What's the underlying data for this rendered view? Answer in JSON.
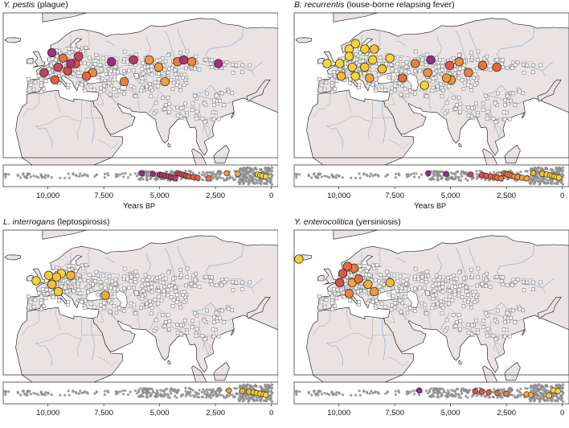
{
  "xaxis": {
    "ticks": [
      "10,000",
      "7,500",
      "5,000",
      "2,500",
      "0"
    ],
    "label": "Years",
    "unit": "BP",
    "range_bp": [
      12000,
      -300
    ]
  },
  "colors": {
    "land": "#e9e3e4",
    "sea": "#ffffff",
    "river": "#9fb6cf",
    "border": "#a8a2a3",
    "sample_square": "#8c8c8c",
    "bg_dot": "#8d8d8d",
    "old": "#9c2a86",
    "mid": "#e8553f",
    "young": "#f7d633"
  },
  "panels": [
    {
      "species": "Y. pestis",
      "disease": "(plague)",
      "show_xlabel": true,
      "map_points": [
        {
          "lon": 6,
          "lat": 58,
          "age": 5000
        },
        {
          "lon": 13,
          "lat": 55,
          "age": 2800
        },
        {
          "lon": 18,
          "lat": 52,
          "age": 4800
        },
        {
          "lon": 23,
          "lat": 56,
          "age": 4300
        },
        {
          "lon": 16,
          "lat": 48,
          "age": 3900
        },
        {
          "lon": 10,
          "lat": 50,
          "age": 4100
        },
        {
          "lon": 21,
          "lat": 52,
          "age": 3600
        },
        {
          "lon": 1,
          "lat": 47,
          "age": 4400
        },
        {
          "lon": 8,
          "lat": 43,
          "age": 3300
        },
        {
          "lon": 28,
          "lat": 45,
          "age": 3100
        },
        {
          "lon": 32,
          "lat": 47,
          "age": 2200
        },
        {
          "lon": 44,
          "lat": 53,
          "age": 5200
        },
        {
          "lon": 58,
          "lat": 54,
          "age": 4600
        },
        {
          "lon": 68,
          "lat": 54,
          "age": 1900
        },
        {
          "lon": 86,
          "lat": 53,
          "age": 2600
        },
        {
          "lon": 95,
          "lat": 53,
          "age": 2300
        },
        {
          "lon": 90,
          "lat": 54,
          "age": 4900
        },
        {
          "lon": 112,
          "lat": 52,
          "age": 5100
        },
        {
          "lon": 74,
          "lat": 50,
          "age": 1800
        },
        {
          "lon": 52,
          "lat": 42,
          "age": 2400
        },
        {
          "lon": 78,
          "lat": 42,
          "age": 1700
        }
      ],
      "timeline_points": [
        5800,
        5300,
        5000,
        4900,
        4750,
        4600,
        4500,
        4400,
        4300,
        4200,
        4100,
        4000,
        3900,
        3800,
        3700,
        3500,
        3300,
        2800,
        2000,
        1500,
        600,
        500,
        400,
        250
      ]
    },
    {
      "species": "B. recurrentis",
      "disease": "(louse-borne relapsing fever)",
      "show_xlabel": true,
      "map_points": [
        {
          "lon": -4,
          "lat": 52,
          "age": 300
        },
        {
          "lon": 4,
          "lat": 52,
          "age": 400
        },
        {
          "lon": 10,
          "lat": 56,
          "age": 500
        },
        {
          "lon": 14,
          "lat": 63,
          "age": 300
        },
        {
          "lon": 20,
          "lat": 60,
          "age": 600
        },
        {
          "lon": 26,
          "lat": 60,
          "age": 900
        },
        {
          "lon": 12,
          "lat": 50,
          "age": 700
        },
        {
          "lon": 20,
          "lat": 50,
          "age": 800
        },
        {
          "lon": 25,
          "lat": 54,
          "age": 500
        },
        {
          "lon": 5,
          "lat": 45,
          "age": 1100
        },
        {
          "lon": 14,
          "lat": 45,
          "age": 450
        },
        {
          "lon": 23,
          "lat": 44,
          "age": 1600
        },
        {
          "lon": 31,
          "lat": 49,
          "age": 900
        },
        {
          "lon": 36,
          "lat": 55,
          "age": 400
        },
        {
          "lon": 44,
          "lat": 44,
          "age": 3000
        },
        {
          "lon": 52,
          "lat": 52,
          "age": 2500
        },
        {
          "lon": 62,
          "lat": 54,
          "age": 6000
        },
        {
          "lon": 74,
          "lat": 51,
          "age": 3500
        },
        {
          "lon": 80,
          "lat": 53,
          "age": 2200
        },
        {
          "lon": 95,
          "lat": 51,
          "age": 2800
        },
        {
          "lon": 60,
          "lat": 47,
          "age": 2100
        },
        {
          "lon": 72,
          "lat": 44,
          "age": 1900
        },
        {
          "lon": 75,
          "lat": 43,
          "age": 1800
        },
        {
          "lon": 86,
          "lat": 47,
          "age": 2400
        },
        {
          "lon": 104,
          "lat": 50,
          "age": 3100
        },
        {
          "lon": 58,
          "lat": 40,
          "age": 200
        },
        {
          "lon": 10,
          "lat": 60,
          "age": 350
        }
      ],
      "timeline_points": [
        6000,
        5200,
        4100,
        3600,
        3400,
        3200,
        3000,
        2900,
        2750,
        2600,
        2500,
        2450,
        2350,
        2250,
        2150,
        2000,
        1800,
        1600,
        1300,
        900,
        700,
        550,
        450,
        350,
        250,
        150
      ]
    },
    {
      "species": "L. interrogans",
      "disease": "(leptospirosis)",
      "show_xlabel": false,
      "map_points": [
        {
          "lon": -4,
          "lat": 52,
          "age": 500
        },
        {
          "lon": 4,
          "lat": 55,
          "age": 700
        },
        {
          "lon": 9,
          "lat": 54,
          "age": 800
        },
        {
          "lon": 12,
          "lat": 56,
          "age": 400
        },
        {
          "lon": 6,
          "lat": 50,
          "age": 900
        },
        {
          "lon": 18,
          "lat": 55,
          "age": 1200
        },
        {
          "lon": 10,
          "lat": 46,
          "age": 600
        },
        {
          "lon": 40,
          "lat": 44,
          "age": 1500
        }
      ],
      "timeline_points": [
        1900,
        1300,
        1000,
        800,
        650,
        500,
        350,
        250
      ]
    },
    {
      "species": "Y. enterocolitica",
      "disease": "(yersiniosis)",
      "show_xlabel": false,
      "map_points": [
        {
          "lon": -22,
          "lat": 64,
          "age": 600
        },
        {
          "lon": 6,
          "lat": 56,
          "age": 3500
        },
        {
          "lon": 9,
          "lat": 60,
          "age": 3100
        },
        {
          "lon": 13,
          "lat": 59,
          "age": 2700
        },
        {
          "lon": 16,
          "lat": 53,
          "age": 2900
        },
        {
          "lon": 4,
          "lat": 51,
          "age": 3800
        },
        {
          "lon": 12,
          "lat": 51,
          "age": 1600
        },
        {
          "lon": 22,
          "lat": 50,
          "age": 1400
        },
        {
          "lon": 36,
          "lat": 51,
          "age": 1100
        },
        {
          "lon": 26,
          "lat": 46,
          "age": 1900
        },
        {
          "lon": 10,
          "lat": 45,
          "age": 2500
        }
      ],
      "timeline_points": [
        6400,
        3900,
        3600,
        3300,
        2900,
        2500,
        1600,
        1400,
        600,
        400,
        200
      ]
    }
  ]
}
